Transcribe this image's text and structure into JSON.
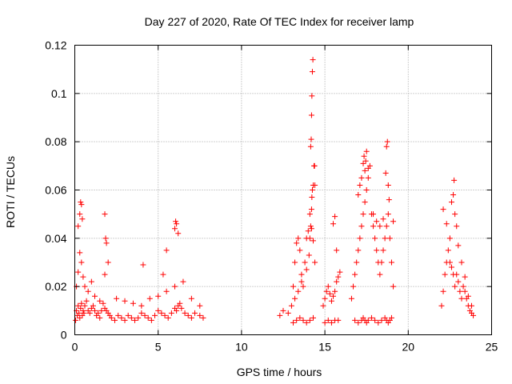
{
  "chart_data": {
    "type": "scatter",
    "title": "Day 227 of 2020, Rate Of TEC Index for receiver lamp",
    "xlabel": "GPS time / hours",
    "ylabel": "ROTI / TECUs",
    "xlim": [
      0,
      25
    ],
    "ylim": [
      0,
      0.12
    ],
    "xticks": [
      0,
      5,
      10,
      15,
      20,
      25
    ],
    "yticks": [
      0,
      0.02,
      0.04,
      0.06,
      0.08,
      0.1,
      0.12
    ],
    "xtick_labels": [
      "0",
      "5",
      "10",
      "15",
      "20",
      "25"
    ],
    "ytick_labels": [
      "0",
      "0.02",
      "0.04",
      "0.06",
      "0.08",
      "0.1",
      "0.12"
    ],
    "grid": true,
    "marker": "+",
    "color": "#ff0000",
    "series": [
      {
        "x": [
          0.05,
          0.1,
          0.15,
          0.2,
          0.25,
          0.3,
          0.35,
          0.4,
          0.45,
          0.5,
          0.55,
          0.6,
          0.7,
          0.8,
          0.9,
          1.0,
          1.1,
          1.2,
          1.3,
          1.4,
          1.5,
          1.6,
          1.7,
          1.8,
          1.9,
          2.0,
          2.1,
          2.2,
          2.4,
          2.6,
          2.8,
          3.0,
          3.2,
          3.4,
          3.6,
          3.8,
          4.0,
          4.2,
          4.4,
          4.6,
          4.8,
          5.0,
          5.2,
          5.4,
          5.6,
          5.8,
          6.0,
          6.1,
          6.2,
          6.3,
          6.4,
          6.6,
          6.8,
          7.0,
          7.2,
          7.5,
          7.7,
          0.1,
          0.2,
          0.3,
          0.4,
          0.5,
          0.6,
          0.8,
          1.0,
          1.2,
          1.5,
          1.8,
          2.0,
          2.5,
          3.0,
          3.5,
          4.0,
          4.5,
          5.0,
          5.5,
          6.0,
          6.5,
          7.0,
          7.5,
          0.2,
          0.3,
          0.35,
          0.4,
          0.45,
          1.8,
          1.85,
          1.9,
          4.1,
          5.3,
          5.5,
          6.0,
          6.05,
          6.1,
          6.2,
          12.3,
          12.5,
          12.8,
          13.0,
          13.1,
          13.2,
          13.3,
          13.4,
          13.5,
          13.6,
          13.7,
          13.8,
          13.9,
          14.0,
          14.1,
          14.2,
          14.3,
          14.4,
          13.1,
          13.3,
          13.5,
          13.7,
          13.9,
          14.1,
          14.3,
          13.2,
          13.4,
          13.6,
          13.9,
          14.05,
          14.1,
          14.15,
          14.2,
          14.22,
          14.25,
          14.3,
          14.35,
          14.38,
          14.4,
          14.15,
          14.18,
          14.2,
          14.22,
          14.25,
          14.28,
          14.9,
          15.0,
          15.1,
          15.2,
          15.3,
          15.4,
          15.5,
          15.6,
          15.7,
          15.8,
          15.9,
          15.0,
          15.2,
          15.4,
          15.6,
          15.8,
          15.5,
          15.6,
          15.7,
          16.6,
          16.7,
          16.8,
          16.9,
          17.0,
          17.1,
          17.2,
          17.3,
          17.4,
          17.5,
          17.6,
          17.7,
          17.8,
          17.9,
          18.0,
          18.1,
          18.2,
          18.3,
          18.4,
          18.5,
          18.6,
          18.7,
          18.8,
          18.9,
          19.0,
          19.1,
          16.8,
          17.0,
          17.2,
          17.3,
          17.4,
          17.5,
          17.6,
          17.8,
          18.0,
          18.2,
          18.4,
          18.6,
          18.7,
          18.8,
          18.9,
          19.0,
          17.0,
          17.1,
          17.2,
          17.3,
          17.35,
          17.4,
          17.45,
          17.5,
          17.6,
          17.9,
          18.1,
          18.3,
          18.5,
          18.65,
          18.7,
          18.75,
          18.8,
          18.85,
          19.1,
          22.0,
          22.1,
          22.2,
          22.3,
          22.4,
          22.5,
          22.6,
          22.7,
          22.8,
          22.9,
          23.0,
          23.1,
          23.2,
          23.3,
          23.4,
          23.5,
          23.6,
          23.7,
          23.8,
          23.9,
          22.1,
          22.3,
          22.5,
          22.6,
          22.7,
          22.75,
          22.8,
          22.9,
          23.0,
          23.2,
          23.4,
          23.6,
          23.8
        ],
        "y": [
          0.006,
          0.01,
          0.008,
          0.012,
          0.009,
          0.007,
          0.011,
          0.013,
          0.008,
          0.01,
          0.009,
          0.012,
          0.014,
          0.01,
          0.009,
          0.011,
          0.012,
          0.01,
          0.008,
          0.009,
          0.007,
          0.01,
          0.013,
          0.011,
          0.01,
          0.009,
          0.008,
          0.007,
          0.006,
          0.008,
          0.007,
          0.006,
          0.008,
          0.007,
          0.006,
          0.007,
          0.009,
          0.008,
          0.007,
          0.006,
          0.008,
          0.01,
          0.009,
          0.008,
          0.007,
          0.009,
          0.011,
          0.01,
          0.012,
          0.013,
          0.011,
          0.009,
          0.008,
          0.007,
          0.009,
          0.008,
          0.007,
          0.02,
          0.026,
          0.034,
          0.03,
          0.024,
          0.02,
          0.018,
          0.022,
          0.016,
          0.014,
          0.025,
          0.03,
          0.015,
          0.014,
          0.013,
          0.012,
          0.015,
          0.016,
          0.018,
          0.02,
          0.022,
          0.015,
          0.012,
          0.045,
          0.05,
          0.055,
          0.054,
          0.048,
          0.05,
          0.04,
          0.038,
          0.029,
          0.025,
          0.035,
          0.044,
          0.047,
          0.046,
          0.042,
          0.008,
          0.01,
          0.009,
          0.012,
          0.02,
          0.03,
          0.038,
          0.04,
          0.035,
          0.025,
          0.02,
          0.03,
          0.04,
          0.043,
          0.05,
          0.044,
          0.039,
          0.03,
          0.005,
          0.006,
          0.007,
          0.006,
          0.005,
          0.006,
          0.007,
          0.015,
          0.018,
          0.022,
          0.027,
          0.033,
          0.04,
          0.045,
          0.052,
          0.057,
          0.06,
          0.062,
          0.07,
          0.07,
          0.062,
          0.078,
          0.081,
          0.091,
          0.099,
          0.109,
          0.114,
          0.012,
          0.015,
          0.018,
          0.02,
          0.017,
          0.014,
          0.016,
          0.018,
          0.022,
          0.024,
          0.026,
          0.005,
          0.006,
          0.005,
          0.006,
          0.006,
          0.046,
          0.049,
          0.035,
          0.015,
          0.02,
          0.025,
          0.03,
          0.035,
          0.04,
          0.045,
          0.05,
          0.055,
          0.06,
          0.065,
          0.07,
          0.05,
          0.045,
          0.04,
          0.035,
          0.03,
          0.025,
          0.03,
          0.035,
          0.04,
          0.045,
          0.05,
          0.04,
          0.03,
          0.02,
          0.006,
          0.005,
          0.006,
          0.007,
          0.006,
          0.005,
          0.006,
          0.007,
          0.006,
          0.005,
          0.006,
          0.007,
          0.006,
          0.005,
          0.006,
          0.007,
          0.058,
          0.062,
          0.065,
          0.071,
          0.074,
          0.068,
          0.072,
          0.076,
          0.069,
          0.05,
          0.047,
          0.045,
          0.048,
          0.067,
          0.078,
          0.08,
          0.062,
          0.056,
          0.047,
          0.012,
          0.018,
          0.025,
          0.03,
          0.035,
          0.03,
          0.028,
          0.025,
          0.02,
          0.025,
          0.022,
          0.018,
          0.015,
          0.02,
          0.018,
          0.015,
          0.012,
          0.01,
          0.009,
          0.008,
          0.052,
          0.046,
          0.04,
          0.055,
          0.058,
          0.064,
          0.05,
          0.045,
          0.037,
          0.03,
          0.024,
          0.016,
          0.012
        ]
      }
    ]
  }
}
